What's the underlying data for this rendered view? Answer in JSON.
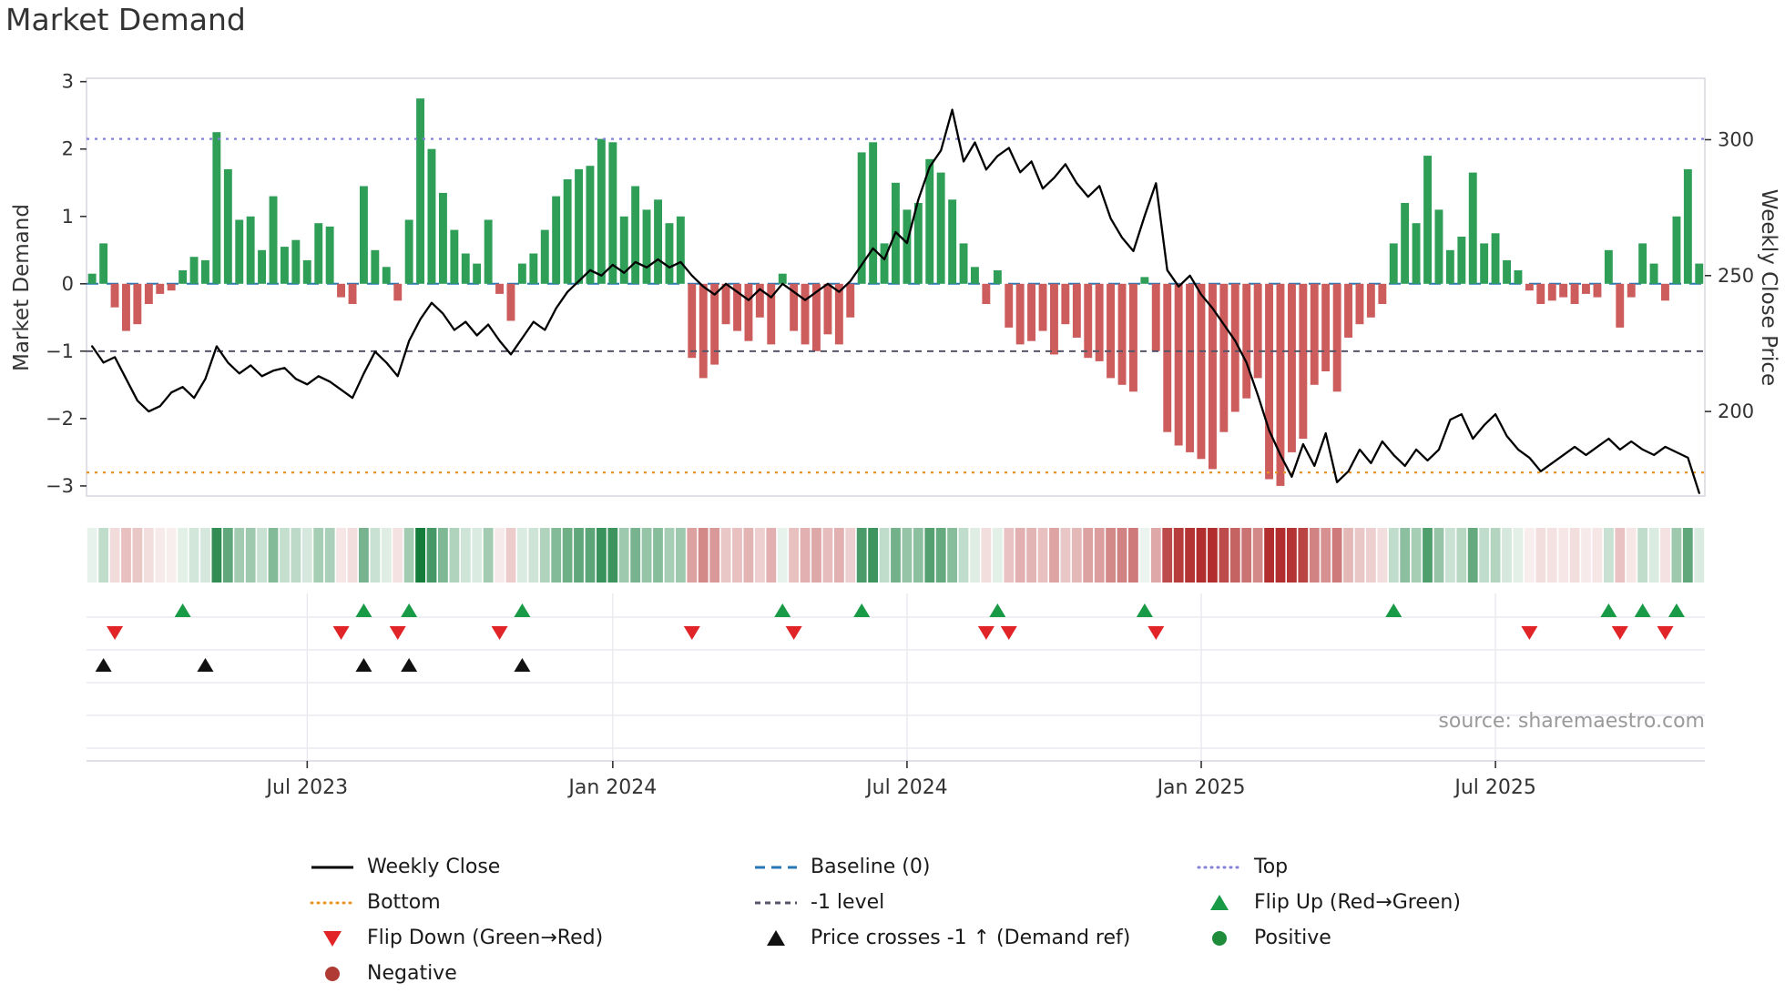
{
  "title": "Market Demand",
  "source": "source: sharemaestro.com",
  "axes": {
    "left_label": "Market Demand",
    "right_label": "Weekly Close Price",
    "left_ylim": [
      -3.15,
      3.05
    ],
    "right_ylim": [
      168.9,
      322.6
    ],
    "left_ticks": [
      {
        "v": 3,
        "label": "3"
      },
      {
        "v": 2,
        "label": "2"
      },
      {
        "v": 1,
        "label": "1"
      },
      {
        "v": 0,
        "label": "0"
      },
      {
        "v": -1,
        "label": "−1"
      },
      {
        "v": -2,
        "label": "−2"
      },
      {
        "v": -3,
        "label": "−3"
      }
    ],
    "right_ticks": [
      {
        "v": 300,
        "label": "300"
      },
      {
        "v": 250,
        "label": "250"
      },
      {
        "v": 200,
        "label": "200"
      }
    ],
    "x_ticks": [
      {
        "week": 19,
        "label": "Jul 2023"
      },
      {
        "week": 46,
        "label": "Jan 2024"
      },
      {
        "week": 72,
        "label": "Jul 2024"
      },
      {
        "week": 98,
        "label": "Jan 2025"
      },
      {
        "week": 124,
        "label": "Jul 2025"
      }
    ]
  },
  "colors": {
    "positive_bar": "#2f9e57",
    "negative_bar": "#cd5c5c",
    "price_line": "#000000",
    "baseline": "#2878b5",
    "top_line": "#8280d8",
    "minus1_line": "#55556a",
    "bottom_line": "#e8921f",
    "flip_up": "#189a46",
    "flip_down": "#e02427",
    "price_cross": "#111111",
    "positive_dot": "#1e8c3a",
    "negative_dot": "#b03a34",
    "heat_pos": "#147d3c",
    "heat_neg": "#b22e2e",
    "frame": "#d6d6de",
    "grid": "#e8e8ee",
    "text": "#333333"
  },
  "chart_data": {
    "type": "bar+line",
    "title": "Market Demand",
    "x_unit": "week",
    "ylabel_left": "Market Demand",
    "ylabel_right": "Weekly Close Price",
    "reference_lines": {
      "top": 2.15,
      "baseline": 0,
      "minus1": -1,
      "bottom": -2.8
    },
    "demand": [
      0.15,
      0.6,
      -0.35,
      -0.7,
      -0.6,
      -0.3,
      -0.15,
      -0.1,
      0.2,
      0.4,
      0.35,
      2.25,
      1.7,
      0.95,
      1.0,
      0.5,
      1.3,
      0.55,
      0.65,
      0.35,
      0.9,
      0.85,
      -0.2,
      -0.3,
      1.45,
      0.5,
      0.25,
      -0.25,
      0.95,
      2.75,
      2.0,
      1.35,
      0.8,
      0.45,
      0.3,
      0.95,
      -0.15,
      -0.55,
      0.3,
      0.45,
      0.8,
      1.3,
      1.55,
      1.7,
      1.75,
      2.15,
      2.1,
      1.0,
      1.45,
      1.1,
      1.25,
      0.9,
      1.0,
      -1.1,
      -1.4,
      -1.2,
      -0.6,
      -0.7,
      -0.85,
      -0.5,
      -0.9,
      0.15,
      -0.7,
      -0.9,
      -1.0,
      -0.75,
      -0.9,
      -0.5,
      1.95,
      2.1,
      0.6,
      1.5,
      1.1,
      1.2,
      1.85,
      1.65,
      1.25,
      0.6,
      0.25,
      -0.3,
      0.2,
      -0.65,
      -0.9,
      -0.85,
      -0.7,
      -1.05,
      -0.6,
      -0.8,
      -1.1,
      -1.15,
      -1.4,
      -1.5,
      -1.6,
      0.1,
      -1.0,
      -2.2,
      -2.4,
      -2.5,
      -2.6,
      -2.75,
      -2.2,
      -1.9,
      -1.7,
      -1.4,
      -2.9,
      -3.0,
      -2.5,
      -2.3,
      -1.5,
      -1.3,
      -1.6,
      -0.8,
      -0.6,
      -0.5,
      -0.3,
      0.6,
      1.2,
      0.9,
      1.9,
      1.1,
      0.5,
      0.7,
      1.65,
      0.6,
      0.75,
      0.35,
      0.2,
      -0.1,
      -0.3,
      -0.25,
      -0.2,
      -0.3,
      -0.15,
      -0.2,
      0.5,
      -0.65,
      -0.2,
      0.6,
      0.3,
      -0.25,
      1.0,
      1.7,
      0.3
    ],
    "price": [
      224,
      218,
      220,
      212,
      204,
      200,
      202,
      207,
      209,
      205,
      212,
      224,
      218,
      214,
      217,
      213,
      215,
      216,
      212,
      210,
      213,
      211,
      208,
      205,
      214,
      222,
      218,
      213,
      226,
      234,
      240,
      236,
      230,
      233,
      228,
      232,
      226,
      221,
      227,
      233,
      230,
      238,
      244,
      248,
      252,
      250,
      254,
      251,
      255,
      253,
      256,
      253,
      255,
      250,
      246,
      243,
      247,
      244,
      241,
      245,
      242,
      247,
      244,
      241,
      244,
      247,
      244,
      248,
      254,
      260,
      256,
      266,
      262,
      278,
      290,
      296,
      311,
      292,
      299,
      289,
      294,
      297,
      288,
      292,
      282,
      286,
      291,
      284,
      279,
      283,
      271,
      264,
      259,
      272,
      284,
      252,
      246,
      250,
      243,
      238,
      232,
      226,
      218,
      206,
      193,
      184,
      176,
      188,
      180,
      192,
      174,
      178,
      186,
      181,
      189,
      184,
      180,
      186,
      182,
      186,
      197,
      199,
      190,
      195,
      199,
      191,
      186,
      183,
      178,
      181,
      184,
      187,
      184,
      187,
      190,
      186,
      189,
      186,
      184,
      187,
      185,
      183,
      170
    ],
    "markers": {
      "flip_up_weeks": [
        8,
        24,
        28,
        38,
        61,
        68,
        80,
        93,
        115,
        134,
        137,
        140
      ],
      "flip_down_weeks": [
        2,
        22,
        27,
        36,
        53,
        62,
        79,
        81,
        94,
        127,
        135,
        139
      ],
      "price_cross_weeks": [
        1,
        10,
        24,
        28,
        38
      ]
    }
  },
  "legend": {
    "columns": [
      {
        "items": [
          {
            "label": "Weekly Close",
            "swatch": "line-solid"
          },
          {
            "label": "Bottom",
            "swatch": "line-dotted-orange"
          },
          {
            "label": "Flip Down (Green→Red)",
            "swatch": "triangle-down-red"
          },
          {
            "label": "Negative",
            "swatch": "circle-red"
          }
        ]
      },
      {
        "items": [
          {
            "label": "Baseline (0)",
            "swatch": "line-dashed-blue"
          },
          {
            "label": "-1 level",
            "swatch": "line-dashed-gray"
          },
          {
            "label": "Price crosses -1 ↑ (Demand ref)",
            "swatch": "triangle-up-black"
          }
        ]
      },
      {
        "items": [
          {
            "label": "Top",
            "swatch": "line-dotted-purple"
          },
          {
            "label": "Flip Up (Red→Green)",
            "swatch": "triangle-up-green"
          },
          {
            "label": "Positive",
            "swatch": "circle-green"
          }
        ]
      }
    ]
  }
}
